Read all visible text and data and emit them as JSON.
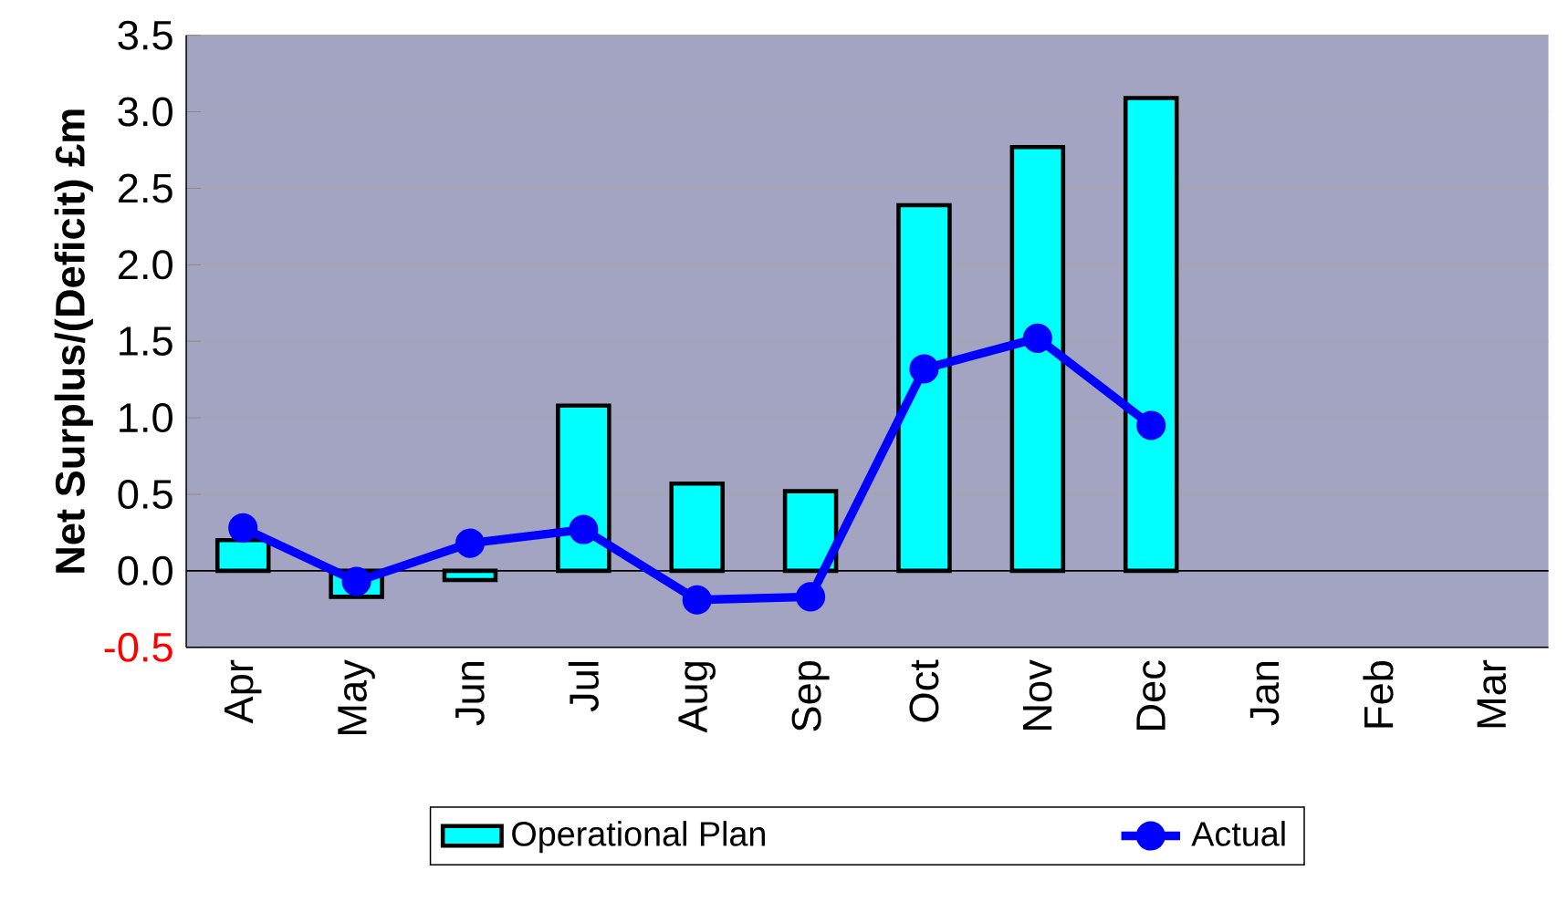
{
  "chart_data": {
    "type": "bar",
    "ylabel": "Net Surplus/(Deficit) £m",
    "categories": [
      "Apr",
      "May",
      "Jun",
      "Jul",
      "Aug",
      "Sep",
      "Oct",
      "Nov",
      "Dec",
      "Jan",
      "Feb",
      "Mar"
    ],
    "series": [
      {
        "name": "Operational Plan",
        "color": "#00ffff",
        "values": [
          0.2,
          -0.17,
          -0.06,
          1.08,
          0.57,
          0.52,
          2.39,
          2.77,
          3.09,
          null,
          null,
          null
        ]
      },
      {
        "name": "Actual",
        "type": "line",
        "color": "#0000ff",
        "marker": "circle",
        "values": [
          0.28,
          -0.07,
          0.18,
          0.27,
          -0.19,
          -0.17,
          1.32,
          1.52,
          0.95,
          null,
          null,
          null
        ]
      }
    ],
    "ylim": [
      -0.5,
      3.5
    ],
    "yticks": [
      {
        "value": -0.5,
        "label": "-0.5"
      },
      {
        "value": 0,
        "label": "0.0"
      },
      {
        "value": 0.5,
        "label": "0.5"
      },
      {
        "value": 1,
        "label": "1.0"
      },
      {
        "value": 1.5,
        "label": "1.5"
      },
      {
        "value": 2,
        "label": "2.0"
      },
      {
        "value": 2.5,
        "label": "2.5"
      },
      {
        "value": 3,
        "label": "3.0"
      },
      {
        "value": 3.5,
        "label": "3.5"
      }
    ],
    "grid": "y",
    "legend": "bottom"
  }
}
